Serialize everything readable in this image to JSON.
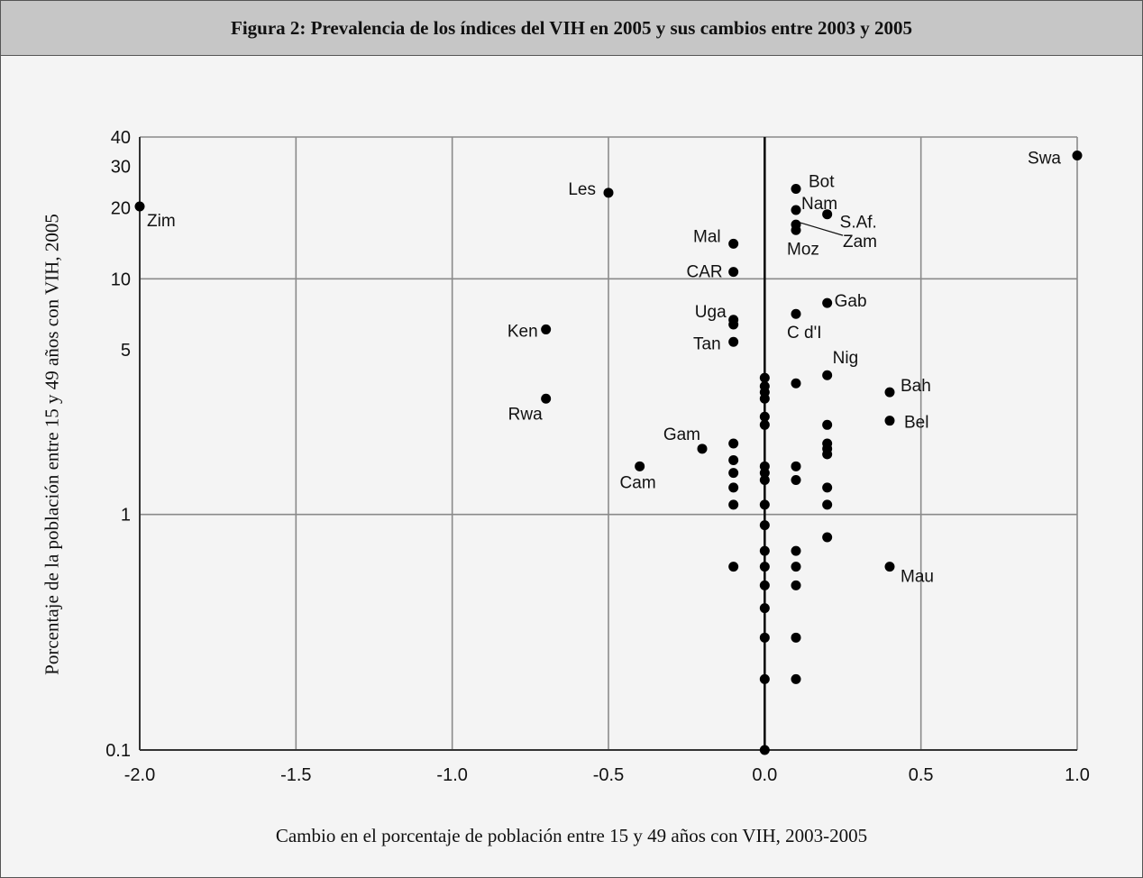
{
  "figure": {
    "title": "Figura 2: Prevalencia de los índices del VIH en 2005 y sus cambios entre 2003 y 2005"
  },
  "chart_data": {
    "type": "scatter",
    "title": "Figura 2: Prevalencia de los índices del VIH en 2005 y sus cambios entre 2003 y 2005",
    "xlabel": "Cambio en el porcentaje de población entre 15 y 49 años con VIH, 2003-2005",
    "ylabel": "Porcentaje de la población entre 15 y 49 años con VIH, 2005",
    "xlim": [
      -2.0,
      1.0
    ],
    "ylim": [
      0.1,
      40
    ],
    "yscale": "log",
    "grid": true,
    "x_ticks": [
      "-2.0",
      "-1.5",
      "-1.0",
      "-0.5",
      "0.0",
      "0.5",
      "1.0"
    ],
    "y_ticks": [
      "0.1",
      "1",
      "5",
      "10",
      "20",
      "30",
      "40"
    ],
    "points": [
      {
        "x": -2.0,
        "y": 20.3,
        "label": "Zim"
      },
      {
        "x": -0.5,
        "y": 23.2,
        "label": "Les"
      },
      {
        "x": 1.0,
        "y": 33.4,
        "label": "Swa"
      },
      {
        "x": 0.1,
        "y": 24.1,
        "label": "Bot"
      },
      {
        "x": 0.1,
        "y": 19.6,
        "label": "Nam"
      },
      {
        "x": 0.2,
        "y": 18.8,
        "label": "S.Af."
      },
      {
        "x": 0.1,
        "y": 17.0,
        "label": "Zam"
      },
      {
        "x": 0.1,
        "y": 16.1,
        "label": "Moz"
      },
      {
        "x": -0.1,
        "y": 14.1,
        "label": "Mal"
      },
      {
        "x": -0.1,
        "y": 10.7,
        "label": "CAR"
      },
      {
        "x": 0.2,
        "y": 7.9,
        "label": "Gab"
      },
      {
        "x": 0.1,
        "y": 7.1,
        "label": "C d'I"
      },
      {
        "x": -0.1,
        "y": 6.7,
        "label": "Uga"
      },
      {
        "x": -0.1,
        "y": 6.4,
        "label": ""
      },
      {
        "x": -0.7,
        "y": 6.1,
        "label": "Ken"
      },
      {
        "x": -0.1,
        "y": 5.4,
        "label": "Tan"
      },
      {
        "x": 0.2,
        "y": 3.9,
        "label": "Nig"
      },
      {
        "x": 0.4,
        "y": 3.3,
        "label": "Bah"
      },
      {
        "x": 0.4,
        "y": 2.5,
        "label": "Bel"
      },
      {
        "x": -0.7,
        "y": 3.1,
        "label": "Rwa"
      },
      {
        "x": -0.2,
        "y": 1.9,
        "label": "Gam"
      },
      {
        "x": -0.4,
        "y": 1.6,
        "label": "Cam"
      },
      {
        "x": 0.4,
        "y": 0.6,
        "label": "Mau"
      },
      {
        "x": 0.0,
        "y": 3.8,
        "label": ""
      },
      {
        "x": 0.0,
        "y": 3.5,
        "label": ""
      },
      {
        "x": 0.0,
        "y": 3.3,
        "label": ""
      },
      {
        "x": 0.0,
        "y": 3.1,
        "label": ""
      },
      {
        "x": 0.0,
        "y": 2.6,
        "label": ""
      },
      {
        "x": 0.0,
        "y": 2.4,
        "label": ""
      },
      {
        "x": 0.0,
        "y": 1.6,
        "label": ""
      },
      {
        "x": 0.0,
        "y": 1.5,
        "label": ""
      },
      {
        "x": 0.0,
        "y": 1.4,
        "label": ""
      },
      {
        "x": 0.0,
        "y": 1.1,
        "label": ""
      },
      {
        "x": 0.0,
        "y": 0.9,
        "label": ""
      },
      {
        "x": 0.0,
        "y": 0.7,
        "label": ""
      },
      {
        "x": 0.0,
        "y": 0.6,
        "label": ""
      },
      {
        "x": 0.0,
        "y": 0.5,
        "label": ""
      },
      {
        "x": 0.0,
        "y": 0.4,
        "label": ""
      },
      {
        "x": 0.0,
        "y": 0.3,
        "label": ""
      },
      {
        "x": 0.0,
        "y": 0.2,
        "label": ""
      },
      {
        "x": 0.0,
        "y": 0.1,
        "label": ""
      },
      {
        "x": 0.1,
        "y": 3.6,
        "label": ""
      },
      {
        "x": 0.1,
        "y": 1.6,
        "label": ""
      },
      {
        "x": 0.1,
        "y": 1.4,
        "label": ""
      },
      {
        "x": 0.1,
        "y": 0.7,
        "label": ""
      },
      {
        "x": 0.1,
        "y": 0.6,
        "label": ""
      },
      {
        "x": 0.1,
        "y": 0.5,
        "label": ""
      },
      {
        "x": 0.1,
        "y": 0.3,
        "label": ""
      },
      {
        "x": 0.1,
        "y": 0.2,
        "label": ""
      },
      {
        "x": 0.2,
        "y": 2.4,
        "label": ""
      },
      {
        "x": 0.2,
        "y": 2.0,
        "label": ""
      },
      {
        "x": 0.2,
        "y": 1.9,
        "label": ""
      },
      {
        "x": 0.2,
        "y": 1.8,
        "label": ""
      },
      {
        "x": 0.2,
        "y": 1.3,
        "label": ""
      },
      {
        "x": 0.2,
        "y": 1.1,
        "label": ""
      },
      {
        "x": 0.2,
        "y": 0.8,
        "label": ""
      },
      {
        "x": -0.1,
        "y": 2.0,
        "label": ""
      },
      {
        "x": -0.1,
        "y": 1.7,
        "label": ""
      },
      {
        "x": -0.1,
        "y": 1.5,
        "label": ""
      },
      {
        "x": -0.1,
        "y": 1.3,
        "label": ""
      },
      {
        "x": -0.1,
        "y": 1.1,
        "label": ""
      },
      {
        "x": -0.1,
        "y": 0.6,
        "label": ""
      }
    ]
  }
}
